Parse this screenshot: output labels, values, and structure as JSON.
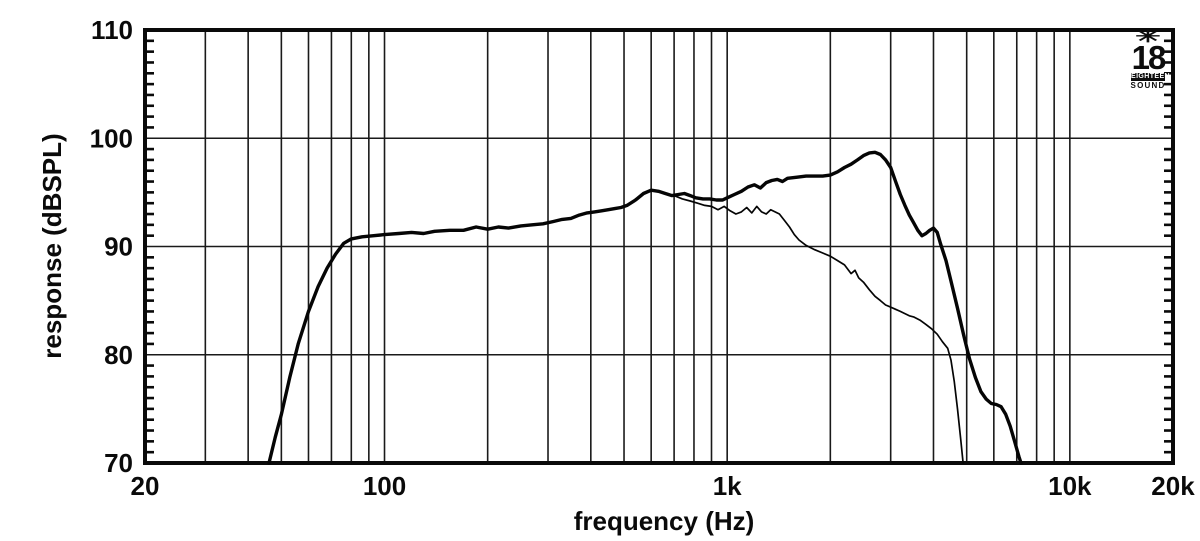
{
  "colors": {
    "background": "#ffffff",
    "grid": "#1a1a1a",
    "border": "#0a0a0a",
    "curve": "#050505",
    "text": "#0a0a0a"
  },
  "logo": {
    "symbol": "✳",
    "number": "18",
    "brand_line1": "EIGHTEEN",
    "brand_line2": "SOUND"
  },
  "chart_data": {
    "type": "line",
    "title": "",
    "xlabel": "frequency (Hz)",
    "ylabel": "response (dBSPL)",
    "x_scale": "log",
    "x_range": [
      20,
      20000
    ],
    "y_range": [
      70,
      110
    ],
    "grid": true,
    "legend_position": "none",
    "x_ticks": [
      {
        "value": 20,
        "label": "20"
      },
      {
        "value": 100,
        "label": "100"
      },
      {
        "value": 1000,
        "label": "1k"
      },
      {
        "value": 10000,
        "label": "10k"
      },
      {
        "value": 20000,
        "label": "20k"
      }
    ],
    "y_ticks": [
      {
        "value": 70,
        "label": "70"
      },
      {
        "value": 80,
        "label": "80"
      },
      {
        "value": 90,
        "label": "90"
      },
      {
        "value": 100,
        "label": "100"
      },
      {
        "value": 110,
        "label": "110"
      }
    ],
    "y_minor_tick_step": 1,
    "h_gridlines": [
      80,
      90,
      100
    ],
    "v_gridlines": [
      30,
      40,
      50,
      60,
      70,
      80,
      90,
      100,
      200,
      300,
      400,
      500,
      600,
      700,
      800,
      900,
      1000,
      2000,
      3000,
      4000,
      5000,
      6000,
      7000,
      8000,
      9000,
      10000
    ],
    "series": [
      {
        "id": "thick-curve",
        "stroke_width": 3.4,
        "points": [
          [
            46,
            70
          ],
          [
            48,
            72.4
          ],
          [
            50,
            74.5
          ],
          [
            53,
            78.0
          ],
          [
            56,
            81.0
          ],
          [
            60,
            84.0
          ],
          [
            64,
            86.3
          ],
          [
            68,
            88.0
          ],
          [
            72,
            89.3
          ],
          [
            76,
            90.3
          ],
          [
            80,
            90.7
          ],
          [
            86,
            90.9
          ],
          [
            93,
            91.0
          ],
          [
            100,
            91.1
          ],
          [
            110,
            91.2
          ],
          [
            120,
            91.3
          ],
          [
            130,
            91.2
          ],
          [
            140,
            91.4
          ],
          [
            155,
            91.5
          ],
          [
            170,
            91.5
          ],
          [
            185,
            91.8
          ],
          [
            200,
            91.6
          ],
          [
            215,
            91.8
          ],
          [
            230,
            91.7
          ],
          [
            250,
            91.9
          ],
          [
            270,
            92.0
          ],
          [
            290,
            92.1
          ],
          [
            310,
            92.3
          ],
          [
            330,
            92.5
          ],
          [
            350,
            92.6
          ],
          [
            370,
            92.9
          ],
          [
            390,
            93.1
          ],
          [
            410,
            93.2
          ],
          [
            430,
            93.3
          ],
          [
            450,
            93.4
          ],
          [
            470,
            93.5
          ],
          [
            490,
            93.6
          ],
          [
            510,
            93.8
          ],
          [
            540,
            94.3
          ],
          [
            570,
            94.9
          ],
          [
            600,
            95.2
          ],
          [
            630,
            95.1
          ],
          [
            660,
            94.9
          ],
          [
            690,
            94.7
          ],
          [
            720,
            94.8
          ],
          [
            750,
            94.9
          ],
          [
            780,
            94.7
          ],
          [
            810,
            94.5
          ],
          [
            850,
            94.4
          ],
          [
            890,
            94.4
          ],
          [
            930,
            94.3
          ],
          [
            970,
            94.3
          ],
          [
            1000,
            94.5
          ],
          [
            1050,
            94.8
          ],
          [
            1100,
            95.1
          ],
          [
            1150,
            95.5
          ],
          [
            1200,
            95.7
          ],
          [
            1250,
            95.4
          ],
          [
            1300,
            95.9
          ],
          [
            1350,
            96.1
          ],
          [
            1400,
            96.2
          ],
          [
            1450,
            96.0
          ],
          [
            1500,
            96.3
          ],
          [
            1600,
            96.4
          ],
          [
            1700,
            96.5
          ],
          [
            1800,
            96.5
          ],
          [
            1900,
            96.5
          ],
          [
            2000,
            96.6
          ],
          [
            2100,
            96.9
          ],
          [
            2200,
            97.3
          ],
          [
            2300,
            97.6
          ],
          [
            2400,
            98.0
          ],
          [
            2500,
            98.4
          ],
          [
            2600,
            98.65
          ],
          [
            2700,
            98.7
          ],
          [
            2800,
            98.5
          ],
          [
            2900,
            98.0
          ],
          [
            3000,
            97.3
          ],
          [
            3100,
            96.0
          ],
          [
            3200,
            94.8
          ],
          [
            3300,
            93.8
          ],
          [
            3400,
            92.9
          ],
          [
            3500,
            92.2
          ],
          [
            3600,
            91.5
          ],
          [
            3700,
            91.0
          ],
          [
            3800,
            91.2
          ],
          [
            3900,
            91.5
          ],
          [
            4000,
            91.7
          ],
          [
            4100,
            91.3
          ],
          [
            4200,
            90.2
          ],
          [
            4350,
            88.7
          ],
          [
            4500,
            86.8
          ],
          [
            4700,
            84.3
          ],
          [
            4900,
            81.8
          ],
          [
            5100,
            79.6
          ],
          [
            5300,
            77.9
          ],
          [
            5500,
            76.6
          ],
          [
            5700,
            75.9
          ],
          [
            5900,
            75.5
          ],
          [
            6100,
            75.4
          ],
          [
            6300,
            75.2
          ],
          [
            6500,
            74.5
          ],
          [
            6700,
            73.4
          ],
          [
            6900,
            72.0
          ],
          [
            7100,
            70.6
          ],
          [
            7200,
            70
          ]
        ]
      },
      {
        "id": "thin-curve",
        "stroke_width": 1.7,
        "points": [
          [
            700,
            94.7
          ],
          [
            740,
            94.4
          ],
          [
            780,
            94.2
          ],
          [
            820,
            94.0
          ],
          [
            860,
            93.8
          ],
          [
            900,
            93.7
          ],
          [
            940,
            93.4
          ],
          [
            980,
            93.7
          ],
          [
            1020,
            93.3
          ],
          [
            1060,
            93.0
          ],
          [
            1100,
            93.2
          ],
          [
            1140,
            93.6
          ],
          [
            1180,
            93.1
          ],
          [
            1220,
            93.7
          ],
          [
            1260,
            93.2
          ],
          [
            1300,
            93.0
          ],
          [
            1340,
            93.4
          ],
          [
            1380,
            93.2
          ],
          [
            1420,
            93.0
          ],
          [
            1470,
            92.4
          ],
          [
            1520,
            91.8
          ],
          [
            1570,
            91.1
          ],
          [
            1620,
            90.6
          ],
          [
            1700,
            90.1
          ],
          [
            1800,
            89.7
          ],
          [
            1900,
            89.4
          ],
          [
            2000,
            89.1
          ],
          [
            2100,
            88.7
          ],
          [
            2200,
            88.3
          ],
          [
            2300,
            87.5
          ],
          [
            2360,
            87.8
          ],
          [
            2420,
            87.1
          ],
          [
            2500,
            86.7
          ],
          [
            2600,
            86.0
          ],
          [
            2700,
            85.4
          ],
          [
            2800,
            85.0
          ],
          [
            2900,
            84.6
          ],
          [
            3000,
            84.4
          ],
          [
            3100,
            84.2
          ],
          [
            3200,
            84.0
          ],
          [
            3300,
            83.8
          ],
          [
            3400,
            83.6
          ],
          [
            3500,
            83.5
          ],
          [
            3650,
            83.2
          ],
          [
            3800,
            82.8
          ],
          [
            3950,
            82.4
          ],
          [
            4100,
            81.9
          ],
          [
            4250,
            81.2
          ],
          [
            4400,
            80.6
          ],
          [
            4500,
            79.5
          ],
          [
            4600,
            77.5
          ],
          [
            4700,
            75.0
          ],
          [
            4800,
            72.3
          ],
          [
            4880,
            70
          ]
        ]
      }
    ]
  }
}
